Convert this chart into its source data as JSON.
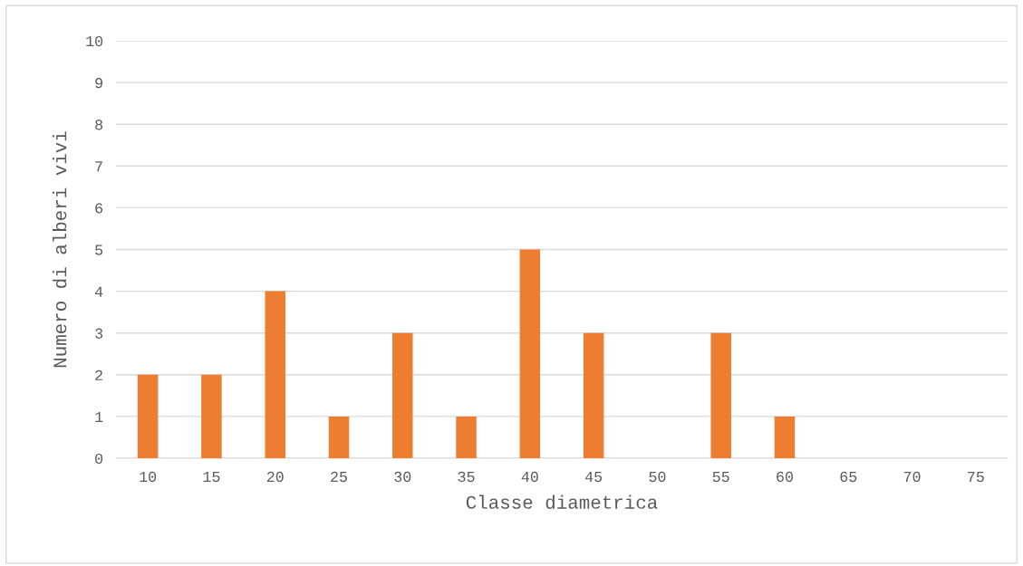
{
  "chart_data": {
    "type": "bar",
    "xlabel": "Classe diametrica",
    "ylabel": "Numero di alberi vivi",
    "categories": [
      "10",
      "15",
      "20",
      "25",
      "30",
      "35",
      "40",
      "45",
      "50",
      "55",
      "60",
      "65",
      "70",
      "75"
    ],
    "values": [
      2,
      2,
      4,
      1,
      3,
      1,
      5,
      3,
      0,
      3,
      1,
      0,
      0,
      0
    ],
    "color": "#ed7d31",
    "ylim": [
      0,
      10
    ],
    "yticks": [
      0,
      1,
      2,
      3,
      4,
      5,
      6,
      7,
      8,
      9,
      10
    ],
    "grid": "y"
  }
}
